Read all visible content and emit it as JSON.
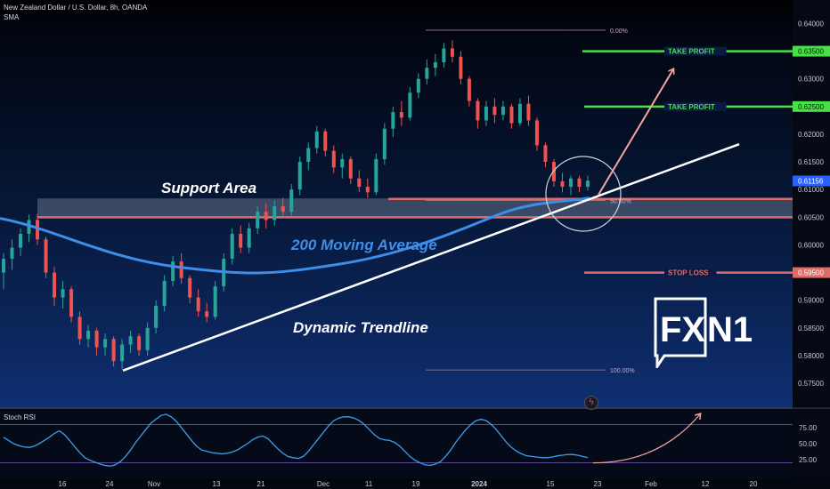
{
  "header": {
    "symbol": "New Zealand Dollar / U.S. Dollar, 8h, OANDA",
    "indicator": "SMA"
  },
  "colors": {
    "up": "#26a69a",
    "down": "#ef5350",
    "ma": "#3d8ee8",
    "take_profit": "#4ade4a",
    "stop_loss": "#e06b6b",
    "price_tag": "#2962ff",
    "fib": "#c98fb4",
    "trend": "#ffffff",
    "arrow": "#f4a6a0"
  },
  "chart_data": [
    {
      "type": "candlestick",
      "title": "New Zealand Dollar / U.S. Dollar, 8h, OANDA",
      "ylim": [
        0.571,
        0.642
      ],
      "y_ticks": [
        "0.64000",
        "0.63500",
        "0.63000",
        "0.62500",
        "0.62000",
        "0.61500",
        "0.61000",
        "0.60500",
        "0.60000",
        "0.59500",
        "0.59000",
        "0.58500",
        "0.58000",
        "0.57500"
      ],
      "x_ticks": [
        "16",
        "24",
        "Nov",
        "13",
        "21",
        "Dec",
        "11",
        "19",
        "2024",
        "15",
        "23",
        "Feb",
        "12",
        "20"
      ],
      "price_tags": [
        {
          "label": "0.63500",
          "value": 0.635,
          "kind": "take_profit"
        },
        {
          "label": "0.62500",
          "value": 0.625,
          "kind": "take_profit"
        },
        {
          "label": "0.61156",
          "value": 0.61156,
          "kind": "last_price"
        },
        {
          "label": "0.59500",
          "value": 0.595,
          "kind": "stop_loss"
        }
      ],
      "levels": [
        {
          "label": "TAKE PROFIT",
          "value": 0.635
        },
        {
          "label": "TAKE PROFIT",
          "value": 0.625
        },
        {
          "label": "STOP LOSS",
          "value": 0.595
        }
      ],
      "fibonacci": [
        {
          "label": "0.00%",
          "value": 0.6388
        },
        {
          "label": "50.00%",
          "value": 0.608
        },
        {
          "label": "100.00%",
          "value": 0.5774
        }
      ],
      "support_zone": [
        0.6048,
        0.6084
      ],
      "annotations": [
        "Support Area",
        "200 Moving Average",
        "Dynamic Trendline"
      ],
      "candles": [
        {
          "o": 0.595,
          "h": 0.5985,
          "l": 0.592,
          "c": 0.5975
        },
        {
          "o": 0.5975,
          "h": 0.601,
          "l": 0.5955,
          "c": 0.5995
        },
        {
          "o": 0.5995,
          "h": 0.603,
          "l": 0.598,
          "c": 0.602
        },
        {
          "o": 0.602,
          "h": 0.6055,
          "l": 0.6005,
          "c": 0.6045
        },
        {
          "o": 0.6045,
          "h": 0.6056,
          "l": 0.6,
          "c": 0.601
        },
        {
          "o": 0.601,
          "h": 0.6015,
          "l": 0.594,
          "c": 0.595
        },
        {
          "o": 0.595,
          "h": 0.596,
          "l": 0.589,
          "c": 0.5905
        },
        {
          "o": 0.5905,
          "h": 0.5935,
          "l": 0.5885,
          "c": 0.592
        },
        {
          "o": 0.592,
          "h": 0.5925,
          "l": 0.586,
          "c": 0.587
        },
        {
          "o": 0.587,
          "h": 0.588,
          "l": 0.582,
          "c": 0.583
        },
        {
          "o": 0.583,
          "h": 0.5855,
          "l": 0.5815,
          "c": 0.5845
        },
        {
          "o": 0.5845,
          "h": 0.585,
          "l": 0.58,
          "c": 0.5815
        },
        {
          "o": 0.5815,
          "h": 0.584,
          "l": 0.58,
          "c": 0.583
        },
        {
          "o": 0.583,
          "h": 0.5835,
          "l": 0.578,
          "c": 0.579
        },
        {
          "o": 0.579,
          "h": 0.583,
          "l": 0.5775,
          "c": 0.582
        },
        {
          "o": 0.582,
          "h": 0.5845,
          "l": 0.5805,
          "c": 0.5835
        },
        {
          "o": 0.5835,
          "h": 0.584,
          "l": 0.58,
          "c": 0.581
        },
        {
          "o": 0.581,
          "h": 0.586,
          "l": 0.58,
          "c": 0.585
        },
        {
          "o": 0.585,
          "h": 0.59,
          "l": 0.584,
          "c": 0.589
        },
        {
          "o": 0.589,
          "h": 0.5945,
          "l": 0.588,
          "c": 0.5935
        },
        {
          "o": 0.5935,
          "h": 0.598,
          "l": 0.5925,
          "c": 0.597
        },
        {
          "o": 0.597,
          "h": 0.5985,
          "l": 0.593,
          "c": 0.594
        },
        {
          "o": 0.594,
          "h": 0.5945,
          "l": 0.5895,
          "c": 0.5905
        },
        {
          "o": 0.5905,
          "h": 0.592,
          "l": 0.587,
          "c": 0.588
        },
        {
          "o": 0.588,
          "h": 0.5895,
          "l": 0.586,
          "c": 0.587
        },
        {
          "o": 0.587,
          "h": 0.5935,
          "l": 0.5865,
          "c": 0.5925
        },
        {
          "o": 0.5925,
          "h": 0.5985,
          "l": 0.5915,
          "c": 0.5975
        },
        {
          "o": 0.5975,
          "h": 0.603,
          "l": 0.5965,
          "c": 0.602
        },
        {
          "o": 0.602,
          "h": 0.6035,
          "l": 0.5985,
          "c": 0.5995
        },
        {
          "o": 0.5995,
          "h": 0.604,
          "l": 0.5985,
          "c": 0.603
        },
        {
          "o": 0.603,
          "h": 0.607,
          "l": 0.602,
          "c": 0.606
        },
        {
          "o": 0.606,
          "h": 0.6075,
          "l": 0.603,
          "c": 0.6045
        },
        {
          "o": 0.6045,
          "h": 0.608,
          "l": 0.6035,
          "c": 0.607
        },
        {
          "o": 0.607,
          "h": 0.6085,
          "l": 0.605,
          "c": 0.606
        },
        {
          "o": 0.606,
          "h": 0.611,
          "l": 0.605,
          "c": 0.61
        },
        {
          "o": 0.61,
          "h": 0.616,
          "l": 0.609,
          "c": 0.615
        },
        {
          "o": 0.615,
          "h": 0.6185,
          "l": 0.6135,
          "c": 0.6175
        },
        {
          "o": 0.6175,
          "h": 0.6215,
          "l": 0.6165,
          "c": 0.6205
        },
        {
          "o": 0.6205,
          "h": 0.621,
          "l": 0.616,
          "c": 0.617
        },
        {
          "o": 0.617,
          "h": 0.618,
          "l": 0.613,
          "c": 0.614
        },
        {
          "o": 0.614,
          "h": 0.6165,
          "l": 0.612,
          "c": 0.6155
        },
        {
          "o": 0.6155,
          "h": 0.616,
          "l": 0.611,
          "c": 0.612
        },
        {
          "o": 0.612,
          "h": 0.6135,
          "l": 0.6095,
          "c": 0.6105
        },
        {
          "o": 0.6105,
          "h": 0.612,
          "l": 0.6085,
          "c": 0.6095
        },
        {
          "o": 0.6095,
          "h": 0.6165,
          "l": 0.609,
          "c": 0.6155
        },
        {
          "o": 0.6155,
          "h": 0.622,
          "l": 0.6145,
          "c": 0.621
        },
        {
          "o": 0.621,
          "h": 0.625,
          "l": 0.6195,
          "c": 0.624
        },
        {
          "o": 0.624,
          "h": 0.626,
          "l": 0.6215,
          "c": 0.623
        },
        {
          "o": 0.623,
          "h": 0.6285,
          "l": 0.6225,
          "c": 0.6275
        },
        {
          "o": 0.6275,
          "h": 0.631,
          "l": 0.6265,
          "c": 0.63
        },
        {
          "o": 0.63,
          "h": 0.6335,
          "l": 0.629,
          "c": 0.632
        },
        {
          "o": 0.632,
          "h": 0.6345,
          "l": 0.6305,
          "c": 0.633
        },
        {
          "o": 0.633,
          "h": 0.6365,
          "l": 0.632,
          "c": 0.6355
        },
        {
          "o": 0.6355,
          "h": 0.637,
          "l": 0.633,
          "c": 0.634
        },
        {
          "o": 0.634,
          "h": 0.635,
          "l": 0.629,
          "c": 0.63
        },
        {
          "o": 0.63,
          "h": 0.6305,
          "l": 0.625,
          "c": 0.626
        },
        {
          "o": 0.626,
          "h": 0.6265,
          "l": 0.621,
          "c": 0.6225
        },
        {
          "o": 0.6225,
          "h": 0.626,
          "l": 0.6215,
          "c": 0.625
        },
        {
          "o": 0.625,
          "h": 0.6265,
          "l": 0.622,
          "c": 0.6235
        },
        {
          "o": 0.6235,
          "h": 0.626,
          "l": 0.6225,
          "c": 0.625
        },
        {
          "o": 0.625,
          "h": 0.6255,
          "l": 0.621,
          "c": 0.622
        },
        {
          "o": 0.622,
          "h": 0.6265,
          "l": 0.6215,
          "c": 0.6255
        },
        {
          "o": 0.6255,
          "h": 0.627,
          "l": 0.6215,
          "c": 0.6225
        },
        {
          "o": 0.6225,
          "h": 0.623,
          "l": 0.617,
          "c": 0.618
        },
        {
          "o": 0.618,
          "h": 0.6185,
          "l": 0.614,
          "c": 0.615
        },
        {
          "o": 0.615,
          "h": 0.6155,
          "l": 0.6105,
          "c": 0.6115
        },
        {
          "o": 0.6115,
          "h": 0.613,
          "l": 0.6095,
          "c": 0.6105
        },
        {
          "o": 0.6105,
          "h": 0.6125,
          "l": 0.609,
          "c": 0.612
        },
        {
          "o": 0.612,
          "h": 0.6125,
          "l": 0.6095,
          "c": 0.6105
        },
        {
          "o": 0.6105,
          "h": 0.6125,
          "l": 0.6098,
          "c": 0.6116
        }
      ]
    },
    {
      "type": "line",
      "title": "Stoch RSI",
      "ylim": [
        0,
        100
      ],
      "y_ticks": [
        "75.00",
        "50.00",
        "25.00"
      ],
      "bands": [
        80,
        20
      ],
      "values": [
        60,
        55,
        50,
        47,
        45,
        44,
        46,
        50,
        55,
        60,
        66,
        70,
        64,
        55,
        45,
        36,
        28,
        24,
        21,
        18,
        16,
        15,
        17,
        22,
        30,
        40,
        52,
        62,
        72,
        82,
        88,
        94,
        96,
        92,
        85,
        75,
        65,
        55,
        46,
        40,
        38,
        36,
        35,
        34,
        35,
        37,
        40,
        45,
        50,
        56,
        60,
        62,
        58,
        50,
        42,
        35,
        30,
        28,
        27,
        30,
        38,
        48,
        58,
        68,
        78,
        86,
        90,
        92,
        92,
        90,
        86,
        80,
        72,
        64,
        58,
        56,
        55,
        52,
        46,
        38,
        30,
        24,
        20,
        17,
        16,
        18,
        22,
        30,
        40,
        52,
        62,
        72,
        80,
        86,
        88,
        86,
        80,
        72,
        62,
        52,
        44,
        38,
        34,
        31,
        30,
        29,
        28,
        28,
        29,
        31,
        32,
        33,
        33,
        32,
        30,
        28
      ]
    }
  ]
}
